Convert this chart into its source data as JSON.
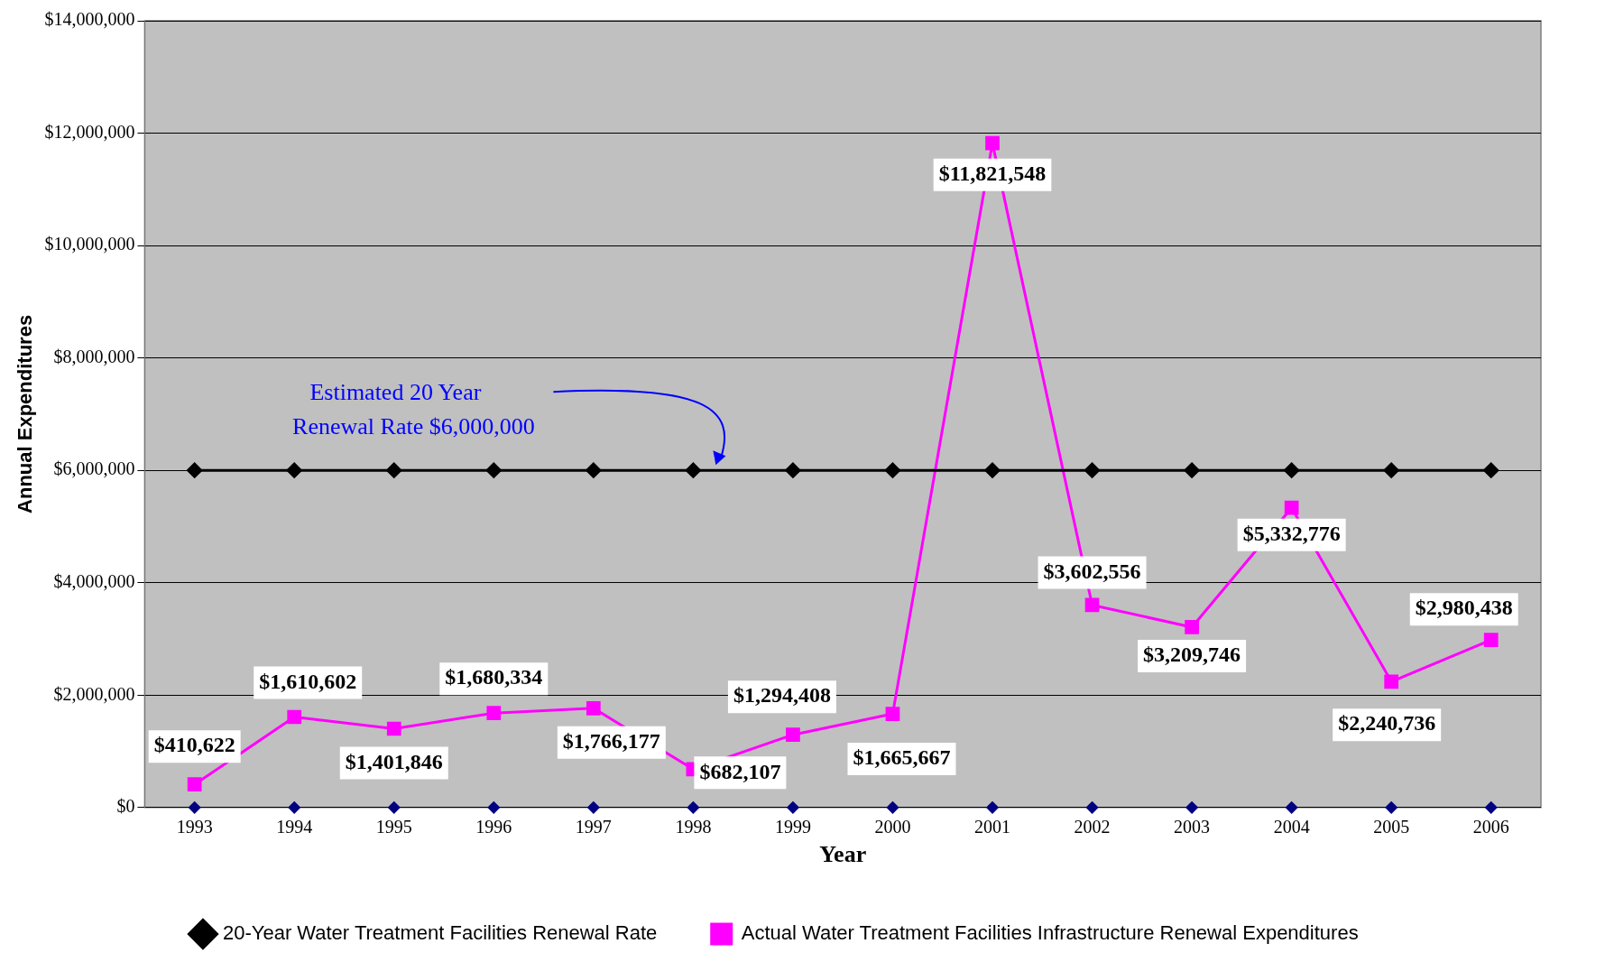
{
  "chart_data": {
    "type": "line",
    "xlabel": "Year",
    "ylabel": "Annual Expenditures",
    "categories": [
      "1993",
      "1994",
      "1995",
      "1996",
      "1997",
      "1998",
      "1999",
      "2000",
      "2001",
      "2002",
      "2003",
      "2004",
      "2005",
      "2006"
    ],
    "series": [
      {
        "name": "20-Year Water Treatment Facilities Renewal Rate",
        "color": "#000000",
        "marker": "diamond",
        "values": [
          6000000,
          6000000,
          6000000,
          6000000,
          6000000,
          6000000,
          6000000,
          6000000,
          6000000,
          6000000,
          6000000,
          6000000,
          6000000,
          6000000
        ]
      },
      {
        "name": "Actual Water Treatment Facilities Infrastructure Renewal Expenditures",
        "color": "#ff00ff",
        "marker": "square",
        "values": [
          410622,
          1610602,
          1401846,
          1680334,
          1766177,
          682107,
          1294408,
          1665667,
          11821548,
          3602556,
          3209746,
          5332776,
          2240736,
          2980438
        ],
        "value_labels": [
          "$410,622",
          "$1,610,602",
          "$1,401,846",
          "$1,680,334",
          "$1,766,177",
          "$682,107",
          "$1,294,408",
          "$1,665,667",
          "$11,821,548",
          "$3,602,556",
          "$3,209,746",
          "$5,332,776",
          "$2,240,736",
          "$2,980,438"
        ]
      },
      {
        "type": "scatter",
        "color": "#000080",
        "marker": "diamond",
        "values": [
          0,
          0,
          0,
          0,
          0,
          0,
          0,
          0,
          0,
          0,
          0,
          0,
          0,
          0
        ]
      }
    ],
    "ylim": [
      0,
      14000000
    ],
    "yticks": [
      {
        "value": 0,
        "label": "$0"
      },
      {
        "value": 2000000,
        "label": "$2,000,000"
      },
      {
        "value": 4000000,
        "label": "$4,000,000"
      },
      {
        "value": 6000000,
        "label": "$6,000,000"
      },
      {
        "value": 8000000,
        "label": "$8,000,000"
      },
      {
        "value": 10000000,
        "label": "$10,000,000"
      },
      {
        "value": 12000000,
        "label": "$12,000,000"
      },
      {
        "value": 14000000,
        "label": "$14,000,000"
      }
    ],
    "grid": "y",
    "legend": "bottom",
    "annotations": [
      "Estimated 20 Year\nRenewal Rate $6,000,000"
    ]
  }
}
